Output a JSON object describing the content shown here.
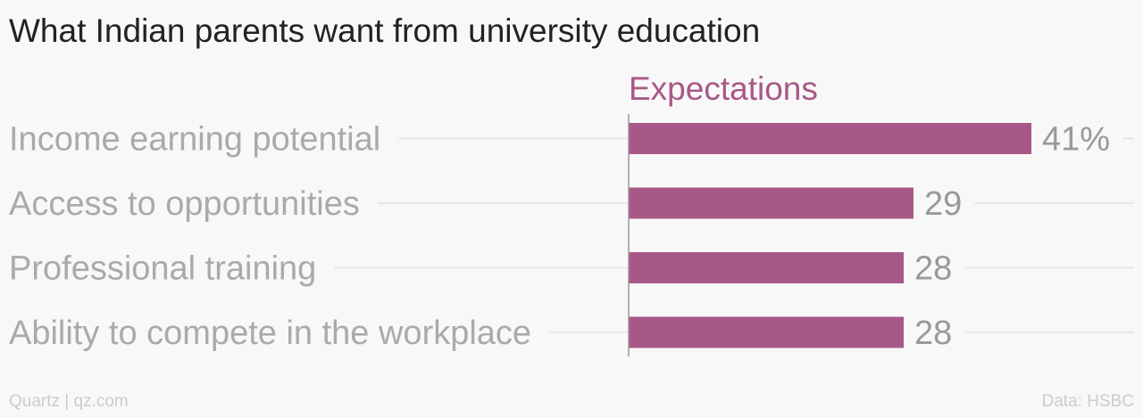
{
  "title": "What Indian parents want from university education",
  "footer": {
    "source_left": "Quartz | qz.com",
    "source_right": "Data: HSBC"
  },
  "colors": {
    "bar": "#a85886",
    "series_label": "#a85886",
    "category_text": "#aaaaaa",
    "value_text": "#999999",
    "guide_line": "#e3e3e3",
    "axis_line": "#999999"
  },
  "chart_data": {
    "type": "bar",
    "orientation": "horizontal",
    "title": "What Indian parents want from university education",
    "categories": [
      "Income earning potential",
      "Access to opportunities",
      "Professional training",
      "Ability to compete in the workplace"
    ],
    "series": [
      {
        "name": "Expectations",
        "values": [
          41,
          29,
          28,
          28
        ]
      }
    ],
    "value_labels": [
      "41%",
      "29",
      "28",
      "28"
    ],
    "xlim": [
      0,
      47
    ],
    "grid": false,
    "legend": "none"
  }
}
